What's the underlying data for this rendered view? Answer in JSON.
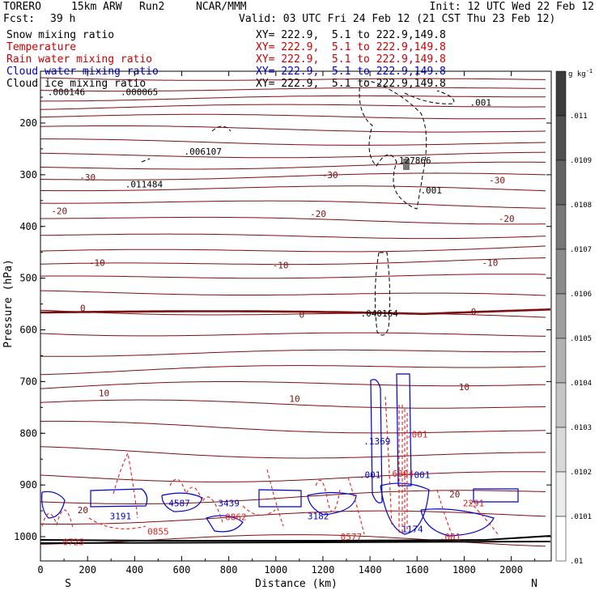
{
  "header": {
    "model": "TORERO",
    "resolution": "15km ARW",
    "run": "Run2",
    "org": "NCAR/MMM",
    "init": "Init: 12 UTC Wed 22 Feb 12",
    "fcst_label": "Fcst:",
    "fcst_value": "39 h",
    "valid": "Valid: 03 UTC Fri 24 Feb 12 (21 CST Thu 23 Feb 12)"
  },
  "legend": [
    {
      "label": "Snow mixing ratio",
      "color": "#000000",
      "xy": "XY= 222.9,  5.1 to 222.9,149.8"
    },
    {
      "label": "Temperature",
      "color": "#cc0000",
      "xy": "XY= 222.9,  5.1 to 222.9,149.8"
    },
    {
      "label": "Rain water mixing ratio",
      "color": "#cc0000",
      "xy": "XY= 222.9,  5.1 to 222.9,149.8"
    },
    {
      "label": "Cloud water mixing ratio",
      "color": "#0000cc",
      "xy": "XY= 222.9,  5.1 to 222.9,149.8"
    },
    {
      "label": "Cloud ice mixing ratio",
      "color": "#000000",
      "xy": "XY= 222.9,  5.1 to 222.9,149.8"
    }
  ],
  "colors": {
    "temperature": "#7a1010",
    "zero_isotherm": "#7a1010",
    "cloud_water": "#0000cc",
    "rain": "#dd2222",
    "snow": "#000000",
    "terrain": "#000000"
  },
  "chart_data": {
    "type": "cross-section",
    "xlabel": "Distance (km)",
    "ylabel": "Pressure (hPa)",
    "xlim": [
      0,
      2170
    ],
    "ylim": [
      1050,
      100
    ],
    "x_ticks": [
      0,
      200,
      400,
      600,
      800,
      1000,
      1200,
      1400,
      1600,
      1800,
      2000
    ],
    "y_ticks": [
      200,
      300,
      400,
      500,
      600,
      700,
      800,
      900,
      1000
    ],
    "y_tick_labels": [
      "200",
      "300",
      "400",
      "500",
      "600",
      "700",
      "800",
      "900",
      "1000"
    ],
    "endpoints": {
      "left": "S",
      "right": "N"
    },
    "colorbar": {
      "unit": "g kg",
      "unit_exp": "-1",
      "labels": [
        ".011",
        ".0109",
        ".0108",
        ".0107",
        ".0106",
        ".0105",
        ".0104",
        ".0103",
        ".0102",
        ".0101",
        ".01"
      ]
    },
    "isotherm_labels": [
      {
        "text": "-30",
        "x": 200,
        "p": 305
      },
      {
        "text": "-30",
        "x": 1230,
        "p": 300
      },
      {
        "text": "-30",
        "x": 1940,
        "p": 310
      },
      {
        "text": "-20",
        "x": 80,
        "p": 370
      },
      {
        "text": "-20",
        "x": 1180,
        "p": 375
      },
      {
        "text": "-20",
        "x": 1980,
        "p": 385
      },
      {
        "text": "-10",
        "x": 240,
        "p": 470
      },
      {
        "text": "-10",
        "x": 1020,
        "p": 475
      },
      {
        "text": "-10",
        "x": 1910,
        "p": 470
      },
      {
        "text": "0",
        "x": 180,
        "p": 558
      },
      {
        "text": "0",
        "x": 1110,
        "p": 570
      },
      {
        "text": "0",
        "x": 1840,
        "p": 565
      },
      {
        "text": "10",
        "x": 270,
        "p": 722
      },
      {
        "text": "10",
        "x": 1080,
        "p": 733
      },
      {
        "text": "10",
        "x": 1800,
        "p": 710
      },
      {
        "text": "20",
        "x": 180,
        "p": 948
      },
      {
        "text": "20",
        "x": 1760,
        "p": 918
      }
    ],
    "field_labels": [
      {
        "text": ".000146",
        "x": 110,
        "p": 140,
        "color": "#000000"
      },
      {
        "text": ".000065",
        "x": 420,
        "p": 140,
        "color": "#000000"
      },
      {
        "text": ".006107",
        "x": 690,
        "p": 255,
        "color": "#000000"
      },
      {
        "text": ".011484",
        "x": 440,
        "p": 318,
        "color": "#000000"
      },
      {
        "text": ".127866",
        "x": 1580,
        "p": 272,
        "color": "#000000"
      },
      {
        "text": ".001",
        "x": 1870,
        "p": 160,
        "color": "#000000"
      },
      {
        "text": ".001",
        "x": 1660,
        "p": 330,
        "color": "#000000"
      },
      {
        "text": ".040164",
        "x": 1440,
        "p": 568,
        "color": "#000000"
      },
      {
        "text": ".1369",
        "x": 1430,
        "p": 815,
        "color": "#0000cc"
      },
      {
        "text": ".001",
        "x": 1400,
        "p": 880,
        "color": "#0000cc"
      },
      {
        "text": ".001",
        "x": 1610,
        "p": 880,
        "color": "#0000cc"
      },
      {
        "text": ".001",
        "x": 1600,
        "p": 802,
        "color": "#dd2222"
      },
      {
        "text": "3191",
        "x": 340,
        "p": 960,
        "color": "#0000cc"
      },
      {
        "text": "4587",
        "x": 590,
        "p": 935,
        "color": "#0000cc"
      },
      {
        "text": "3439",
        "x": 800,
        "p": 935,
        "color": "#0000cc"
      },
      {
        "text": "3182",
        "x": 1180,
        "p": 960,
        "color": "#0000cc"
      },
      {
        "text": "2291",
        "x": 1840,
        "p": 935,
        "color": "#dd2222"
      },
      {
        "text": "0725",
        "x": 140,
        "p": 1010,
        "color": "#dd2222"
      },
      {
        "text": "0855",
        "x": 500,
        "p": 990,
        "color": "#dd2222"
      },
      {
        "text": "0862",
        "x": 830,
        "p": 962,
        "color": "#dd2222"
      },
      {
        "text": "0577",
        "x": 1320,
        "p": 1000,
        "color": "#dd2222"
      },
      {
        "text": "6804",
        "x": 1540,
        "p": 878,
        "color": "#dd2222"
      },
      {
        "text": "1174",
        "x": 1580,
        "p": 985,
        "color": "#0000cc"
      },
      {
        "text": ".001",
        "x": 1740,
        "p": 1000,
        "color": "#dd2222"
      }
    ]
  }
}
